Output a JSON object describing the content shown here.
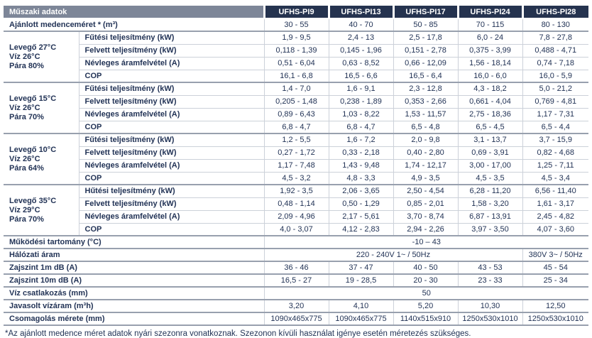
{
  "header": {
    "title": "Műszaki adatok",
    "models": [
      "UFHS-PI9",
      "UFHS-PI13",
      "UFHS-PI17",
      "UFHS-PI24",
      "UFHS-PI28"
    ]
  },
  "rows": [
    {
      "kind": "simple",
      "label": "Ajánlott medenceméret * (m³)",
      "values": [
        "30 - 55",
        "40 - 70",
        "50 - 85",
        "70 - 115",
        "80 - 130"
      ]
    },
    {
      "kind": "group",
      "condition": [
        "Levegő 27°C",
        "Víz 26°C",
        "Pára 80%"
      ],
      "params": [
        {
          "label": "Fűtési teljesítmény (kW)",
          "values": [
            "1,9 - 9,5",
            "2,4 - 13",
            "2,5 - 17,8",
            "6,0 - 24",
            "7,8 - 27,8"
          ]
        },
        {
          "label": "Felvett teljesítmény (kW)",
          "values": [
            "0,118 - 1,39",
            "0,145 - 1,96",
            "0,151 - 2,78",
            "0,375 - 3,99",
            "0,488 - 4,71"
          ]
        },
        {
          "label": "Névleges áramfelvétel (A)",
          "values": [
            "0,51 - 6,04",
            "0,63 - 8,52",
            "0,66 - 12,09",
            "1,56 - 18,14",
            "0,74 - 7,18"
          ]
        },
        {
          "label": "COP",
          "values": [
            "16,1 - 6,8",
            "16,5 - 6,6",
            "16,5 - 6,4",
            "16,0 - 6,0",
            "16,0 - 5,9"
          ]
        }
      ]
    },
    {
      "kind": "group",
      "condition": [
        "Levegő 15°C",
        "Víz 26°C",
        "Pára 70%"
      ],
      "params": [
        {
          "label": "Fűtési teljesítmény (kW)",
          "values": [
            "1,4 - 7,0",
            "1,6 - 9,1",
            "2,3 - 12,8",
            "4,3 - 18,2",
            "5,0 - 21,2"
          ]
        },
        {
          "label": "Felvett teljesítmény (kW)",
          "values": [
            "0,205 - 1,48",
            "0,238 - 1,89",
            "0,353 - 2,66",
            "0,661 - 4,04",
            "0,769 - 4,81"
          ]
        },
        {
          "label": "Névleges áramfelvétel (A)",
          "values": [
            "0,89 - 6,43",
            "1,03 - 8,22",
            "1,53 - 11,57",
            "2,75 - 18,36",
            "1,17 - 7,31"
          ]
        },
        {
          "label": "COP",
          "values": [
            "6,8 - 4,7",
            "6,8 - 4,7",
            "6,5 - 4,8",
            "6,5 - 4,5",
            "6,5 - 4,4"
          ]
        }
      ]
    },
    {
      "kind": "group",
      "condition": [
        "Levegő 10°C",
        "Víz 26°C",
        "Pára 64%"
      ],
      "params": [
        {
          "label": "Fűtési teljesítmény (kW)",
          "values": [
            "1,2 - 5,5",
            "1,6 - 7,2",
            "2,0 - 9,8",
            "3,1 - 13,7",
            "3,7 - 15,9"
          ]
        },
        {
          "label": "Felvett teljesítmény (kW)",
          "values": [
            "0,27 - 1,72",
            "0,33 - 2,18",
            "0,40 - 2,80",
            "0,69 - 3,91",
            "0,82 - 4,68"
          ]
        },
        {
          "label": "Névleges áramfelvétel (A)",
          "values": [
            "1,17 - 7,48",
            "1,43 - 9,48",
            "1,74 - 12,17",
            "3,00 - 17,00",
            "1,25 - 7,11"
          ]
        },
        {
          "label": "COP",
          "values": [
            "4,5 - 3,2",
            "4,8 - 3,3",
            "4,9 - 3,5",
            "4,5 - 3,5",
            "4,5 - 3,4"
          ]
        }
      ]
    },
    {
      "kind": "group",
      "condition": [
        "Levegő 35°C",
        "Víz 29°C",
        "Pára 70%"
      ],
      "params": [
        {
          "label": "Hűtési teljesítmény (kW)",
          "values": [
            "1,92 - 3,5",
            "2,06 - 3,65",
            "2,50 - 4,54",
            "6,28 - 11,20",
            "6,56 - 11,40"
          ]
        },
        {
          "label": "Felvett teljesítmény (kW)",
          "values": [
            "0,48 - 1,14",
            "0,50 - 1,29",
            "0,85 - 2,01",
            "1,58 - 3,20",
            "1,61 - 3,17"
          ]
        },
        {
          "label": "Névleges áramfelvétel (A)",
          "values": [
            "2,09 - 4,96",
            "2,17 - 5,61",
            "3,70 - 8,74",
            "6,87 - 13,91",
            "2,45 - 4,82"
          ]
        },
        {
          "label": "COP",
          "values": [
            "4,0 - 3,07",
            "4,12 - 2,83",
            "2,94 - 2,26",
            "3,97 - 3,50",
            "4,07 - 3,60"
          ]
        }
      ]
    },
    {
      "kind": "span",
      "label": "Működési tartomány (°C)",
      "value": "-10 – 43"
    },
    {
      "kind": "split",
      "label": "Hálózati áram",
      "value_main": "220 - 240V 1~ / 50Hz",
      "value_last": "380V 3~ / 50Hz"
    },
    {
      "kind": "simple",
      "label": "Zajszint 1m dB (A)",
      "values": [
        "36 - 46",
        "37 - 47",
        "40 - 50",
        "43 - 53",
        "45 - 54"
      ]
    },
    {
      "kind": "simple",
      "label": "Zajszint 10m dB (A)",
      "values": [
        "16,5 - 27",
        "19 - 28,5",
        "20 - 30",
        "23 - 33",
        "25 - 34"
      ]
    },
    {
      "kind": "span",
      "label": "Víz csatlakozás (mm)",
      "value": "50"
    },
    {
      "kind": "simple",
      "label": "Javasolt vízáram (m³h)",
      "values": [
        "3,20",
        "4,10",
        "5,20",
        "10,30",
        "12,50"
      ]
    },
    {
      "kind": "simple",
      "label": "Csomagolás mérete (mm)",
      "values": [
        "1090x465x775",
        "1090x465x775",
        "1140x515x910",
        "1250x530x1010",
        "1250x530x1010"
      ]
    }
  ],
  "footnote": "*Az ajánlott medence méret adatok nyári szezonra vonatkoznak. Szezonon kívüli használat igénye esetén méretezés szükséges.",
  "colors": {
    "header_navy": "#25334f",
    "header_gray": "#7d8698",
    "text_navy": "#223356",
    "border_light": "#ccd1d9",
    "border_strong": "#98a0ae"
  }
}
